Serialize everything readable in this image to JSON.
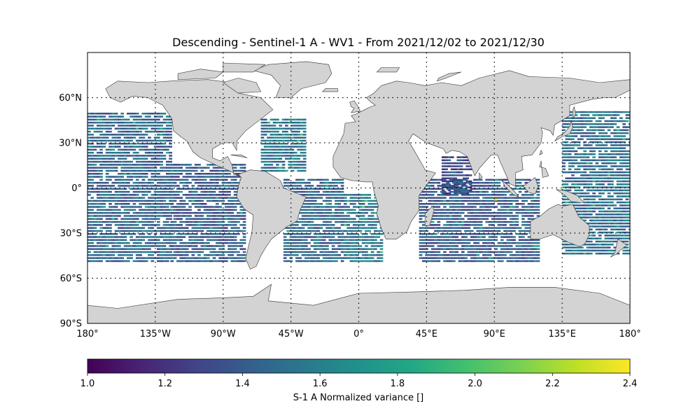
{
  "title": "Descending - Sentinel-1 A - WV1 - From 2021/12/02 to 2021/12/30",
  "map": {
    "lon_ticks": [
      "180°",
      "135°W",
      "90°W",
      "45°W",
      "0°",
      "45°E",
      "90°E",
      "135°E",
      "180°"
    ],
    "lat_ticks": [
      "60°N",
      "30°N",
      "0°",
      "30°S",
      "60°S",
      "90°S"
    ],
    "lon_range": [
      -180,
      180
    ],
    "lat_range": [
      -90,
      90
    ],
    "gridlines": "dotted",
    "land_color": "#d3d3d3",
    "coastline_color": "#333333"
  },
  "colorbar": {
    "colormap": "viridis",
    "range": [
      1.0,
      2.4
    ],
    "ticks": [
      "1.0",
      "1.2",
      "1.4",
      "1.6",
      "1.8",
      "2.0",
      "2.2",
      "2.4"
    ],
    "label": "S-1 A Normalized variance []",
    "orientation": "horizontal"
  },
  "chart_data": {
    "type": "heatmap",
    "title": "Descending - Sentinel-1 A - WV1 - From 2021/12/02 to 2021/12/30",
    "xlabel": "",
    "ylabel": "",
    "xlim": [
      -180,
      180
    ],
    "ylim": [
      -90,
      90
    ],
    "value_range": [
      1.0,
      2.4
    ],
    "coverage_regions": [
      {
        "lon": [
          -180,
          -125
        ],
        "lat": [
          -50,
          50
        ],
        "typical_value": 1.45
      },
      {
        "lon": [
          -125,
          -75
        ],
        "lat": [
          -50,
          15
        ],
        "typical_value": 1.4
      },
      {
        "lon": [
          -65,
          -35
        ],
        "lat": [
          10,
          45
        ],
        "typical_value": 1.55
      },
      {
        "lon": [
          -50,
          -10
        ],
        "lat": [
          -50,
          5
        ],
        "typical_value": 1.45
      },
      {
        "lon": [
          -10,
          15
        ],
        "lat": [
          -50,
          -5
        ],
        "typical_value": 1.55
      },
      {
        "lon": [
          55,
          75
        ],
        "lat": [
          -5,
          20
        ],
        "typical_value": 1.3
      },
      {
        "lon": [
          40,
          120
        ],
        "lat": [
          -50,
          5
        ],
        "typical_value": 1.4
      },
      {
        "lon": [
          135,
          180
        ],
        "lat": [
          -45,
          50
        ],
        "typical_value": 1.5
      }
    ],
    "max_value_location": {
      "lon": 90,
      "lat": -8,
      "value": 2.4
    }
  }
}
